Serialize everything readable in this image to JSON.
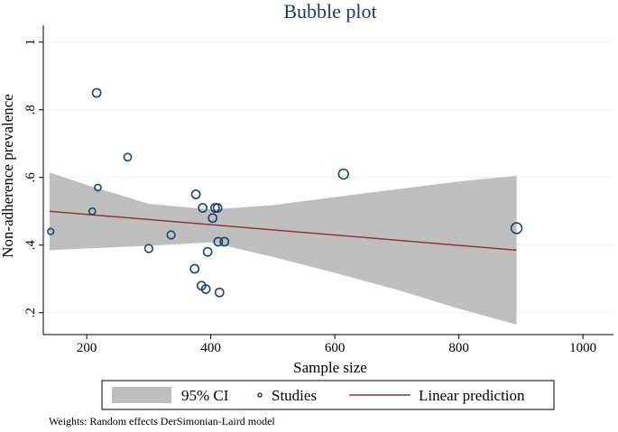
{
  "chart_data": {
    "type": "scatter",
    "title": "Bubble plot",
    "xlabel": "Sample size",
    "ylabel": "Non-adherence prevalence",
    "xlim": [
      130,
      1010
    ],
    "ylim": [
      0.13,
      1.02
    ],
    "xticks": [
      200,
      400,
      600,
      800,
      1000
    ],
    "yticks": [
      0.2,
      0.4,
      0.6,
      0.8,
      1
    ],
    "ytick_labels": [
      ".2",
      ".4",
      ".6",
      ".8",
      "1"
    ],
    "grid": true,
    "legend": {
      "position": "bottom",
      "entries": [
        "95% CI",
        "Studies",
        "Linear prediction"
      ]
    },
    "colors": {
      "ci_band": "#bebebe",
      "study_marker": "#1a476f",
      "prediction_line": "#90353b",
      "grid": "#eaf2f3",
      "title": "#1e3a5f"
    },
    "studies": [
      {
        "x": 142,
        "y": 0.44,
        "w": 0.5
      },
      {
        "x": 209,
        "y": 0.5,
        "w": 0.6
      },
      {
        "x": 216,
        "y": 0.85,
        "w": 1.0
      },
      {
        "x": 218,
        "y": 0.57,
        "w": 0.6
      },
      {
        "x": 266,
        "y": 0.66,
        "w": 0.8
      },
      {
        "x": 300,
        "y": 0.39,
        "w": 0.9
      },
      {
        "x": 336,
        "y": 0.43,
        "w": 0.9
      },
      {
        "x": 374,
        "y": 0.33,
        "w": 1.0
      },
      {
        "x": 376,
        "y": 0.55,
        "w": 1.0
      },
      {
        "x": 385,
        "y": 0.28,
        "w": 1.0
      },
      {
        "x": 387,
        "y": 0.51,
        "w": 1.0
      },
      {
        "x": 392,
        "y": 0.27,
        "w": 1.0
      },
      {
        "x": 395,
        "y": 0.38,
        "w": 1.0
      },
      {
        "x": 403,
        "y": 0.48,
        "w": 1.0
      },
      {
        "x": 407,
        "y": 0.51,
        "w": 1.0
      },
      {
        "x": 411,
        "y": 0.51,
        "w": 1.0
      },
      {
        "x": 412,
        "y": 0.41,
        "w": 1.0
      },
      {
        "x": 414,
        "y": 0.26,
        "w": 1.0
      },
      {
        "x": 422,
        "y": 0.41,
        "w": 1.0
      },
      {
        "x": 614,
        "y": 0.61,
        "w": 1.3
      },
      {
        "x": 893,
        "y": 0.45,
        "w": 1.5
      }
    ],
    "linear_prediction": {
      "x": [
        140,
        893
      ],
      "y": [
        0.5,
        0.385
      ]
    },
    "ci_band": {
      "x": [
        140,
        200,
        300,
        400,
        500,
        600,
        700,
        800,
        893
      ],
      "upper": [
        0.615,
        0.578,
        0.522,
        0.505,
        0.518,
        0.542,
        0.565,
        0.588,
        0.605
      ],
      "lower": [
        0.385,
        0.39,
        0.398,
        0.408,
        0.365,
        0.318,
        0.268,
        0.212,
        0.165
      ]
    }
  },
  "footnote": "Weights: Random effects DerSimonian-Laird model"
}
